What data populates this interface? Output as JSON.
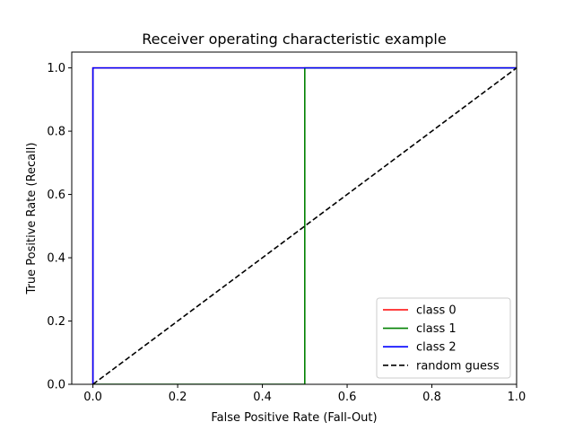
{
  "chart_data": {
    "type": "line",
    "title": "Receiver operating characteristic example",
    "xlabel": "False Positive Rate (Fall-Out)",
    "ylabel": "True Positive Rate (Recall)",
    "xlim": [
      -0.05,
      1.0
    ],
    "ylim": [
      0.0,
      1.05
    ],
    "xticks": [
      0.0,
      0.2,
      0.4,
      0.6,
      0.8,
      1.0
    ],
    "xtick_labels": [
      "0.0",
      "0.2",
      "0.4",
      "0.6",
      "0.8",
      "1.0"
    ],
    "yticks": [
      0.0,
      0.2,
      0.4,
      0.6,
      0.8,
      1.0
    ],
    "ytick_labels": [
      "0.0",
      "0.2",
      "0.4",
      "0.6",
      "0.8",
      "1.0"
    ],
    "grid": false,
    "legend_position": "lower-right",
    "series": [
      {
        "name": "class 0",
        "color": "#ff0000",
        "dash": "solid",
        "x": [
          0.0,
          0.0,
          1.0
        ],
        "y": [
          0.0,
          1.0,
          1.0
        ]
      },
      {
        "name": "class 1",
        "color": "#008000",
        "dash": "solid",
        "x": [
          0.0,
          0.5,
          0.5,
          1.0
        ],
        "y": [
          0.0,
          0.0,
          1.0,
          1.0
        ]
      },
      {
        "name": "class 2",
        "color": "#0000ff",
        "dash": "solid",
        "x": [
          0.0,
          0.0,
          1.0
        ],
        "y": [
          0.0,
          1.0,
          1.0
        ]
      },
      {
        "name": "random guess",
        "color": "#000000",
        "dash": "dashed",
        "x": [
          0.0,
          1.0
        ],
        "y": [
          0.0,
          1.0
        ]
      }
    ]
  }
}
